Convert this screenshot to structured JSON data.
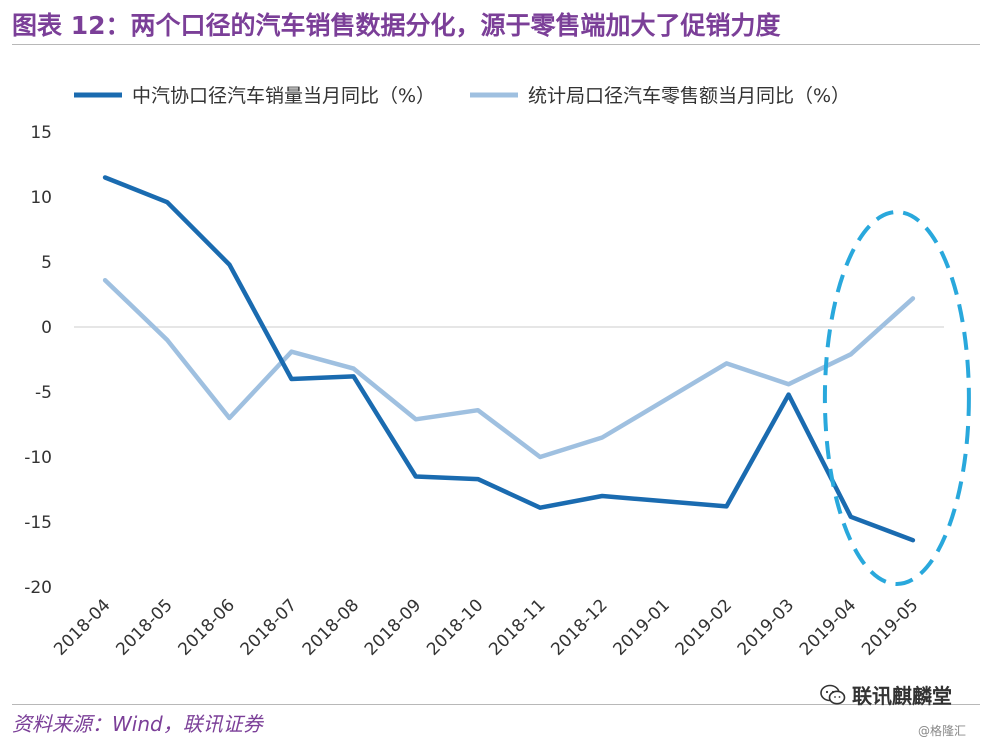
{
  "header": {
    "title": "图表 12：两个口径的汽车销售数据分化，源于零售端加大了促销力度"
  },
  "footer": {
    "source": "资料来源：Wind，联讯证券",
    "wechat_label": "联讯麒麟堂",
    "watermark": "@格隆汇"
  },
  "colors": {
    "title": "#7b3f98",
    "series_dark": "#1a6bb0",
    "series_light": "#9fc0e0",
    "highlight": "#29a8dc"
  },
  "chart_data": {
    "type": "line",
    "title": "",
    "xlabel": "",
    "ylabel": "",
    "ylim": [
      -20,
      15
    ],
    "yticks": [
      15,
      10,
      5,
      0,
      -5,
      -10,
      -15,
      -20
    ],
    "grid": false,
    "legend_position": "top",
    "categories": [
      "2018-04",
      "2018-05",
      "2018-06",
      "2018-07",
      "2018-08",
      "2018-09",
      "2018-10",
      "2018-11",
      "2018-12",
      "2019-01",
      "2019-02",
      "2019-03",
      "2019-04",
      "2019-05"
    ],
    "series": [
      {
        "name": "中汽协口径汽车销量当月同比（%）",
        "color": "#1a6bb0",
        "values": [
          11.5,
          9.6,
          4.8,
          -4.0,
          -3.8,
          -11.5,
          -11.7,
          -13.9,
          -13.0,
          null,
          -13.8,
          -5.2,
          -14.6,
          -16.4
        ]
      },
      {
        "name": "统计局口径汽车零售额当月同比（%）",
        "color": "#9fc0e0",
        "values": [
          3.6,
          -1.0,
          -7.0,
          -1.9,
          -3.2,
          -7.1,
          -6.4,
          -10.0,
          -8.5,
          null,
          -2.8,
          -4.4,
          -2.1,
          2.2
        ]
      }
    ],
    "annotations": [
      {
        "type": "dashed-ellipse",
        "around_categories": [
          "2019-04",
          "2019-05"
        ]
      }
    ]
  }
}
